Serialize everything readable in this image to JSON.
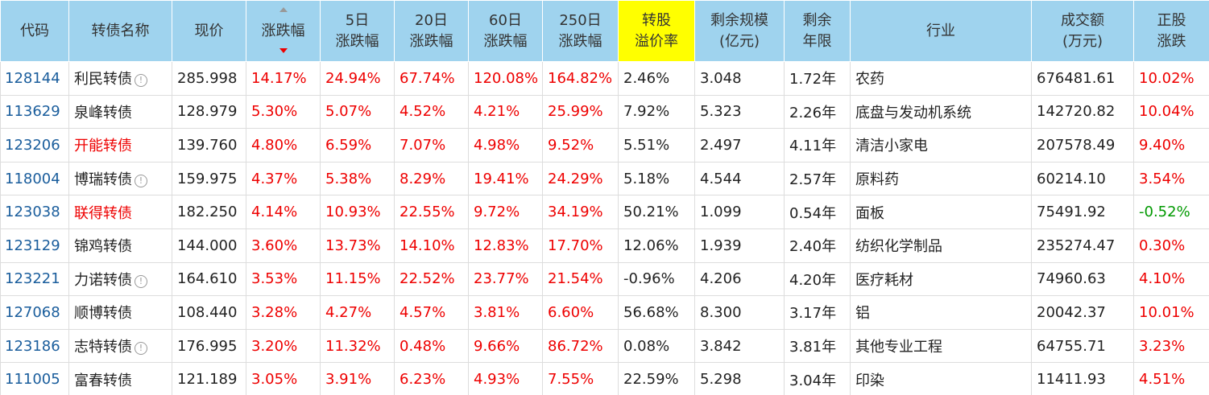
{
  "table": {
    "headers": [
      {
        "lines": [
          "代码"
        ]
      },
      {
        "lines": [
          "转债名称"
        ]
      },
      {
        "lines": [
          "现价"
        ]
      },
      {
        "lines": [
          "涨跌幅"
        ],
        "color": "#e00",
        "sort": "desc"
      },
      {
        "lines": [
          "5日",
          "涨跌幅"
        ],
        "color": "#e00"
      },
      {
        "lines": [
          "20日",
          "涨跌幅"
        ],
        "color": "#e00"
      },
      {
        "lines": [
          "60日",
          "涨跌幅"
        ],
        "color": "#e00"
      },
      {
        "lines": [
          "250日",
          "涨跌幅"
        ],
        "color": "#e00"
      },
      {
        "lines": [
          "转股",
          "溢价率"
        ],
        "highlight": "#ffff00"
      },
      {
        "lines": [
          "剩余规模",
          "(亿元)"
        ]
      },
      {
        "lines": [
          "剩余",
          "年限"
        ]
      },
      {
        "lines": [
          "行业"
        ]
      },
      {
        "lines": [
          "成交额",
          "(万元)"
        ]
      },
      {
        "lines": [
          "正股",
          "涨跌"
        ],
        "color": "#e00",
        "negative_color": "#090"
      }
    ],
    "rows": [
      {
        "info": true,
        "cells": [
          "128144",
          "利民转债",
          "285.998",
          "14.17%",
          "24.94%",
          "67.74%",
          "120.08%",
          "164.82%",
          "2.46%",
          "3.048",
          "1.72年",
          "农药",
          "676481.61",
          "10.02%"
        ]
      },
      {
        "cells": [
          "113629",
          "泉峰转债",
          "128.979",
          "5.30%",
          "5.07%",
          "4.52%",
          "4.21%",
          "25.99%",
          "7.92%",
          "5.323",
          "2.26年",
          "底盘与发动机系统",
          "142720.82",
          "10.04%"
        ]
      },
      {
        "name_color": "#e00",
        "cells": [
          "123206",
          "开能转债",
          "139.760",
          "4.80%",
          "6.59%",
          "7.07%",
          "4.98%",
          "9.52%",
          "5.51%",
          "2.497",
          "4.11年",
          "清洁小家电",
          "207578.49",
          "9.40%"
        ]
      },
      {
        "info": true,
        "cells": [
          "118004",
          "博瑞转债",
          "159.975",
          "4.37%",
          "5.38%",
          "8.29%",
          "19.41%",
          "24.29%",
          "5.18%",
          "4.544",
          "2.57年",
          "原料药",
          "60214.10",
          "3.54%"
        ]
      },
      {
        "name_color": "#e00",
        "cells": [
          "123038",
          "联得转债",
          "182.250",
          "4.14%",
          "10.93%",
          "22.55%",
          "9.72%",
          "34.19%",
          "50.21%",
          "1.099",
          "0.54年",
          "面板",
          "75491.92",
          "-0.52%"
        ]
      },
      {
        "cells": [
          "123129",
          "锦鸡转债",
          "144.000",
          "3.60%",
          "13.73%",
          "14.10%",
          "12.83%",
          "17.70%",
          "12.06%",
          "1.939",
          "2.40年",
          "纺织化学制品",
          "235274.47",
          "0.30%"
        ]
      },
      {
        "info": true,
        "cells": [
          "123221",
          "力诺转债",
          "164.610",
          "3.53%",
          "11.15%",
          "22.52%",
          "23.77%",
          "21.54%",
          "-0.96%",
          "4.206",
          "4.20年",
          "医疗耗材",
          "74960.63",
          "4.10%"
        ]
      },
      {
        "cells": [
          "127068",
          "顺博转债",
          "108.440",
          "3.28%",
          "4.27%",
          "4.57%",
          "3.81%",
          "6.60%",
          "56.68%",
          "8.300",
          "3.17年",
          "铝",
          "20042.37",
          "10.01%"
        ]
      },
      {
        "info": true,
        "cells": [
          "123186",
          "志特转债",
          "176.995",
          "3.20%",
          "11.32%",
          "0.48%",
          "9.66%",
          "86.72%",
          "0.08%",
          "3.842",
          "3.81年",
          "其他专业工程",
          "64755.71",
          "3.23%"
        ]
      },
      {
        "cells": [
          "111005",
          "富春转债",
          "121.189",
          "3.05%",
          "3.91%",
          "6.23%",
          "4.93%",
          "7.55%",
          "22.59%",
          "5.298",
          "3.04年",
          "印染",
          "11411.93",
          "4.51%"
        ]
      }
    ]
  }
}
